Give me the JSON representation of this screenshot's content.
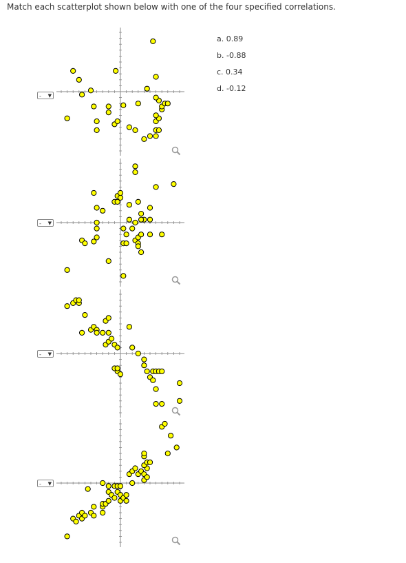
{
  "instruction": "Match each scatterplot shown below with one of the four specified correlations.",
  "options": [
    {
      "letter": "a.",
      "value": "0.89"
    },
    {
      "letter": "b.",
      "value": "-0.88"
    },
    {
      "letter": "c.",
      "value": "0.34"
    },
    {
      "letter": "d.",
      "value": "-0.12"
    }
  ],
  "select_label": "-",
  "colors": {
    "point_fill": "#ffff00",
    "point_stroke": "#000000",
    "axis": "#888888",
    "zoom": "#999999"
  },
  "icons": {
    "zoom": "magnifier-icon",
    "dropdown": "chevron-down-icon"
  },
  "chart_data": [
    {
      "type": "scatter",
      "xlim": [
        -10,
        10
      ],
      "ylim": [
        -10,
        10
      ],
      "points": [
        [
          -8,
          3.5
        ],
        [
          -7,
          2
        ],
        [
          -6.5,
          -0.5
        ],
        [
          -5,
          0.2
        ],
        [
          -4.5,
          -2.5
        ],
        [
          -9,
          -4.5
        ],
        [
          -4,
          -5
        ],
        [
          -4,
          -6.5
        ],
        [
          -2,
          -2.5
        ],
        [
          -2,
          -3.5
        ],
        [
          -1,
          -5.5
        ],
        [
          -0.5,
          -5
        ],
        [
          -0.8,
          3.5
        ],
        [
          0.5,
          -2.3
        ],
        [
          1.5,
          -6
        ],
        [
          2.5,
          -6.5
        ],
        [
          3,
          -2
        ],
        [
          4,
          -8
        ],
        [
          5,
          -7.5
        ],
        [
          6,
          -7.5
        ],
        [
          6,
          -6.5
        ],
        [
          6.5,
          -6.5
        ],
        [
          6,
          -5
        ],
        [
          6.5,
          -4.5
        ],
        [
          6,
          -4
        ],
        [
          7,
          -3
        ],
        [
          7,
          -2.5
        ],
        [
          7.5,
          -2
        ],
        [
          8,
          -2
        ],
        [
          6.5,
          -1.5
        ],
        [
          6,
          -1
        ],
        [
          4.5,
          0.5
        ],
        [
          6,
          2.5
        ],
        [
          5.5,
          8.5
        ]
      ]
    },
    {
      "type": "scatter",
      "xlim": [
        -10,
        10
      ],
      "ylim": [
        -10,
        10
      ],
      "points": [
        [
          -9,
          -8
        ],
        [
          -6.5,
          -3
        ],
        [
          -6,
          -3.5
        ],
        [
          -4.5,
          -3.2
        ],
        [
          -2,
          -6.5
        ],
        [
          -4,
          -2.5
        ],
        [
          -4,
          -1
        ],
        [
          -4,
          0
        ],
        [
          -4,
          2.5
        ],
        [
          -3,
          2
        ],
        [
          -4.5,
          5
        ],
        [
          -1,
          3.5
        ],
        [
          -0.5,
          3.5
        ],
        [
          -0.5,
          4.5
        ],
        [
          0,
          4.2
        ],
        [
          0,
          5
        ],
        [
          2.5,
          8.5
        ],
        [
          2.5,
          9.5
        ],
        [
          1.5,
          3
        ],
        [
          3,
          3.5
        ],
        [
          5,
          2.5
        ],
        [
          4,
          0.5
        ],
        [
          5,
          0.5
        ],
        [
          3.5,
          0.5
        ],
        [
          3.5,
          1.5
        ],
        [
          2.5,
          0
        ],
        [
          2,
          -1
        ],
        [
          1.5,
          0.5
        ],
        [
          1,
          -2
        ],
        [
          0.5,
          -1
        ],
        [
          0.5,
          -3.5
        ],
        [
          1,
          -3.5
        ],
        [
          2.5,
          -3
        ],
        [
          3,
          -3.5
        ],
        [
          3,
          -4
        ],
        [
          3,
          -2.5
        ],
        [
          3.5,
          -2
        ],
        [
          3.5,
          -5
        ],
        [
          5,
          -2
        ],
        [
          7,
          -2
        ],
        [
          0.5,
          -9
        ],
        [
          6,
          6
        ],
        [
          9,
          6.5
        ]
      ]
    },
    {
      "type": "scatter",
      "xlim": [
        -10,
        10
      ],
      "ylim": [
        -10,
        10
      ],
      "points": [
        [
          -9,
          8
        ],
        [
          -8,
          8.5
        ],
        [
          -7.5,
          9
        ],
        [
          -7,
          8.5
        ],
        [
          -7,
          9
        ],
        [
          -6,
          6.5
        ],
        [
          -6.5,
          3.5
        ],
        [
          -5,
          4
        ],
        [
          -4.5,
          4.5
        ],
        [
          -4,
          4
        ],
        [
          -4,
          3.5
        ],
        [
          -3,
          3.5
        ],
        [
          -2.5,
          5.5
        ],
        [
          -2,
          3.5
        ],
        [
          -2,
          6
        ],
        [
          -2.5,
          1.5
        ],
        [
          -2,
          2
        ],
        [
          -1.5,
          2.5
        ],
        [
          -1,
          1.5
        ],
        [
          -0.5,
          1
        ],
        [
          1.5,
          4.5
        ],
        [
          2,
          1
        ],
        [
          3,
          0
        ],
        [
          4,
          -1
        ],
        [
          4,
          -2
        ],
        [
          4.5,
          -3
        ],
        [
          5.5,
          -3
        ],
        [
          6,
          -3
        ],
        [
          6.5,
          -3
        ],
        [
          7,
          -3
        ],
        [
          5,
          -4
        ],
        [
          5.5,
          -4.5
        ],
        [
          6,
          -6
        ],
        [
          6,
          -8.5
        ],
        [
          7,
          -8.5
        ],
        [
          -1,
          -2.5
        ],
        [
          -0.5,
          -3
        ],
        [
          0,
          -3.5
        ],
        [
          -0.5,
          -2.5
        ],
        [
          10,
          -5
        ],
        [
          10,
          -8
        ]
      ]
    },
    {
      "type": "scatter",
      "xlim": [
        -10,
        10
      ],
      "ylim": [
        -10,
        10
      ],
      "points": [
        [
          -9,
          -9
        ],
        [
          -8,
          -6
        ],
        [
          -7.5,
          -6.5
        ],
        [
          -7,
          -5.5
        ],
        [
          -6.5,
          -6
        ],
        [
          -6.5,
          -5
        ],
        [
          -6,
          -5.5
        ],
        [
          -5,
          -5
        ],
        [
          -4.5,
          -4
        ],
        [
          -4.5,
          -5.5
        ],
        [
          -3,
          -4
        ],
        [
          -3,
          -5
        ],
        [
          -3,
          -3.5
        ],
        [
          -2.5,
          -3.5
        ],
        [
          -2,
          -3
        ],
        [
          -5.5,
          -1
        ],
        [
          -3,
          0
        ],
        [
          -2,
          -0.5
        ],
        [
          -2,
          -1.5
        ],
        [
          -1.5,
          -2
        ],
        [
          -1,
          -2.5
        ],
        [
          -0.5,
          -1.5
        ],
        [
          -1,
          -0.5
        ],
        [
          -0.5,
          -0.5
        ],
        [
          0,
          -0.5
        ],
        [
          0,
          -2
        ],
        [
          0,
          -3
        ],
        [
          0.5,
          -2.5
        ],
        [
          1,
          -2
        ],
        [
          1,
          -3
        ],
        [
          1.5,
          1.5
        ],
        [
          2,
          2
        ],
        [
          2.5,
          2.5
        ],
        [
          3,
          1.5
        ],
        [
          3.5,
          2
        ],
        [
          4,
          1.5
        ],
        [
          4,
          0.5
        ],
        [
          4.5,
          1
        ],
        [
          4.5,
          2.5
        ],
        [
          4,
          3
        ],
        [
          4.5,
          3.5
        ],
        [
          4,
          4.5
        ],
        [
          5,
          3.5
        ],
        [
          2,
          0
        ],
        [
          4,
          5
        ],
        [
          7,
          9.5
        ],
        [
          7.5,
          10
        ],
        [
          8,
          5
        ],
        [
          9.5,
          6
        ],
        [
          8.5,
          8
        ]
      ]
    }
  ]
}
